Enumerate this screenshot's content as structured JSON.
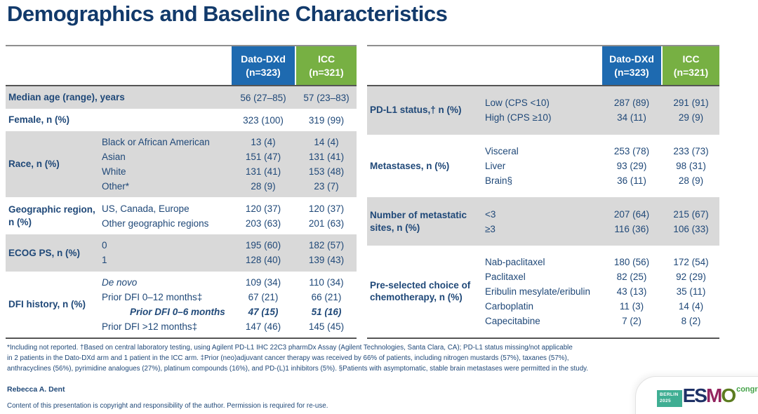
{
  "slide": {
    "title": "Demographics and Baseline Characteristics",
    "footnote": "*Including not reported. †Based on central laboratory testing, using Agilent PD-L1 IHC 22C3 pharmDx Assay (Agilent Technologies, Santa Clara, CA); PD-L1 status missing/not applicable\nin 2 patients in the Dato-DXd arm and 1 patient in the ICC arm. ‡Prior (neo)adjuvant cancer therapy was received by 66% of patients, including nitrogen mustards (57%), taxanes (57%),\nanthracyclines (56%), pyrimidine analogues (27%), platinum compounds (16%), and PD-(L)1 inhibitors (5%). §Patients with asymptomatic, stable brain metastases were permitted in the study.",
    "credit": "Rebecca A. Dent",
    "copyright": "Content of this presentation is copyright and responsibility of the author. Permission is required for re-use."
  },
  "colors": {
    "arm1": "#1e6ab0",
    "arm2": "#77b043",
    "shade": "#d9d9d9",
    "text": "#1f4878",
    "title": "#123a6b"
  },
  "logo": {
    "city": "BERLIN",
    "year": "2025",
    "letters": [
      {
        "ch": "E",
        "color": "#1e3166"
      },
      {
        "ch": "S",
        "color": "#1e3166"
      },
      {
        "ch": "M",
        "color": "#93245f"
      },
      {
        "ch": "O",
        "color": "#5c7c20"
      }
    ],
    "congress": "congress"
  },
  "tables": [
    {
      "header": {
        "arm1": {
          "name": "Dato-DXd",
          "n": "(n=323)"
        },
        "arm2": {
          "name": "ICC",
          "n": "(n=321)"
        }
      },
      "groups": [
        {
          "label": "Median age (range), years",
          "shade": true,
          "rows": [
            {
              "sub": "",
              "v1": "56 (27–85)",
              "v2": "57 (23–83)"
            }
          ]
        },
        {
          "label": "Female, n (%)",
          "shade": false,
          "rows": [
            {
              "sub": "",
              "v1": "323 (100)",
              "v2": "319 (99)"
            }
          ]
        },
        {
          "label": "Race, n (%)",
          "shade": true,
          "rows": [
            {
              "sub": "Black or African American",
              "v1": "13 (4)",
              "v2": "14 (4)"
            },
            {
              "sub": "Asian",
              "v1": "151 (47)",
              "v2": "131 (41)"
            },
            {
              "sub": "White",
              "v1": "131 (41)",
              "v2": "153 (48)"
            },
            {
              "sub": "Other*",
              "v1": "28 (9)",
              "v2": "23 (7)"
            }
          ]
        },
        {
          "label": "Geographic region, n (%)",
          "shade": false,
          "rows": [
            {
              "sub": "US, Canada, Europe",
              "v1": "120 (37)",
              "v2": "120 (37)"
            },
            {
              "sub": "Other geographic regions",
              "v1": "203 (63)",
              "v2": "201 (63)"
            }
          ]
        },
        {
          "label": "ECOG PS, n (%)",
          "shade": true,
          "rows": [
            {
              "sub": "0",
              "v1": "195 (60)",
              "v2": "182 (57)"
            },
            {
              "sub": "1",
              "v1": "128 (40)",
              "v2": "139 (43)"
            }
          ]
        },
        {
          "label": "DFI history, n (%)",
          "shade": false,
          "rows": [
            {
              "sub": "De novo",
              "style": "it",
              "v1": "109 (34)",
              "v2": "110 (34)"
            },
            {
              "sub": "Prior DFI 0–12 months‡",
              "v1": "67 (21)",
              "v2": "66 (21)"
            },
            {
              "sub": "Prior DFI 0–6 months",
              "style": "emph",
              "v1": "47 (15)",
              "v2": "51 (16)"
            },
            {
              "sub": "Prior DFI >12 months‡",
              "v1": "147 (46)",
              "v2": "145 (45)"
            }
          ]
        }
      ]
    },
    {
      "header": {
        "arm1": {
          "name": "Dato-DXd",
          "n": "(n=323)"
        },
        "arm2": {
          "name": "ICC",
          "n": "(n=321)"
        }
      },
      "groups": [
        {
          "label": "PD-L1 status,† n (%)",
          "shade": true,
          "rows": [
            {
              "sub": "Low (CPS <10)",
              "v1": "287 (89)",
              "v2": "291 (91)"
            },
            {
              "sub": "High (CPS ≥10)",
              "v1": "34 (11)",
              "v2": "29 (9)"
            }
          ]
        },
        {
          "label": "Metastases, n (%)",
          "shade": false,
          "rows": [
            {
              "sub": "Visceral",
              "v1": "253 (78)",
              "v2": "233 (73)"
            },
            {
              "sub": "Liver",
              "v1": "93 (29)",
              "v2": "98 (31)"
            },
            {
              "sub": "Brain§",
              "v1": "36 (11)",
              "v2": "28 (9)"
            }
          ]
        },
        {
          "label": "Number of metastatic sites, n (%)",
          "shade": true,
          "rows": [
            {
              "sub": "<3",
              "v1": "207 (64)",
              "v2": "215 (67)"
            },
            {
              "sub": "≥3",
              "v1": "116 (36)",
              "v2": "106 (33)"
            }
          ]
        },
        {
          "label": "Pre-selected choice of chemotherapy, n (%)",
          "shade": false,
          "rows": [
            {
              "sub": "Nab-paclitaxel",
              "v1": "180 (56)",
              "v2": "172 (54)"
            },
            {
              "sub": "Paclitaxel",
              "v1": "82 (25)",
              "v2": "92 (29)"
            },
            {
              "sub": "Eribulin mesylate/eribulin",
              "v1": "43 (13)",
              "v2": "35 (11)"
            },
            {
              "sub": "Carboplatin",
              "v1": "11 (3)",
              "v2": "14 (4)"
            },
            {
              "sub": "Capecitabine",
              "v1": "7 (2)",
              "v2": "8 (2)"
            }
          ]
        }
      ]
    }
  ]
}
